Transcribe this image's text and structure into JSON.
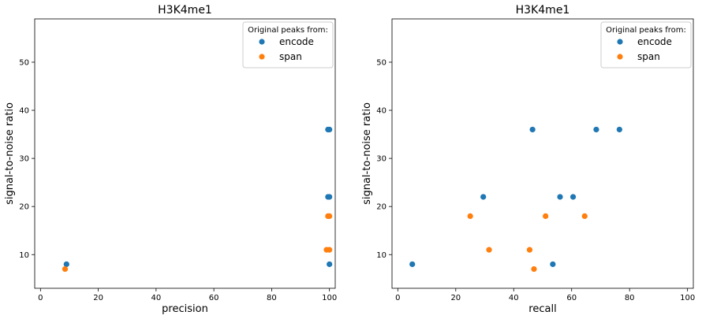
{
  "chart_data": [
    {
      "type": "scatter",
      "title": "H3K4me1",
      "xlabel": "precision",
      "ylabel": "signal-to-noise ratio",
      "xlim": [
        -2,
        102
      ],
      "ylim": [
        3,
        59
      ],
      "xticks": [
        0,
        20,
        40,
        60,
        80,
        100
      ],
      "yticks": [
        10,
        20,
        30,
        40,
        50
      ],
      "grid": false,
      "legend": {
        "title": "Original peaks from:",
        "placement": "top-right"
      },
      "series": [
        {
          "name": "encode",
          "color": "#1f77b4",
          "points": [
            [
              9,
              8
            ],
            [
              99.5,
              36
            ],
            [
              100,
              36
            ],
            [
              99.5,
              22
            ],
            [
              100,
              22
            ],
            [
              100,
              8
            ]
          ]
        },
        {
          "name": "span",
          "color": "#ff7f0e",
          "points": [
            [
              8.5,
              7
            ],
            [
              99.5,
              18
            ],
            [
              100,
              18
            ],
            [
              99,
              11
            ],
            [
              100,
              11
            ]
          ]
        }
      ]
    },
    {
      "type": "scatter",
      "title": "H3K4me1",
      "xlabel": "recall",
      "ylabel": "signal-to-noise ratio",
      "xlim": [
        -2,
        102
      ],
      "ylim": [
        3,
        59
      ],
      "xticks": [
        0,
        20,
        40,
        60,
        80,
        100
      ],
      "yticks": [
        10,
        20,
        30,
        40,
        50
      ],
      "grid": false,
      "legend": {
        "title": "Original peaks from:",
        "placement": "top-right"
      },
      "series": [
        {
          "name": "encode",
          "color": "#1f77b4",
          "points": [
            [
              5,
              8
            ],
            [
              29.5,
              22
            ],
            [
              46.5,
              36
            ],
            [
              53.5,
              8
            ],
            [
              56,
              22
            ],
            [
              60.5,
              22
            ],
            [
              68.5,
              36
            ],
            [
              76.5,
              36
            ]
          ]
        },
        {
          "name": "span",
          "color": "#ff7f0e",
          "points": [
            [
              25,
              18
            ],
            [
              31.5,
              11
            ],
            [
              45.5,
              11
            ],
            [
              47,
              7
            ],
            [
              51,
              18
            ],
            [
              64.5,
              18
            ]
          ]
        }
      ]
    }
  ]
}
